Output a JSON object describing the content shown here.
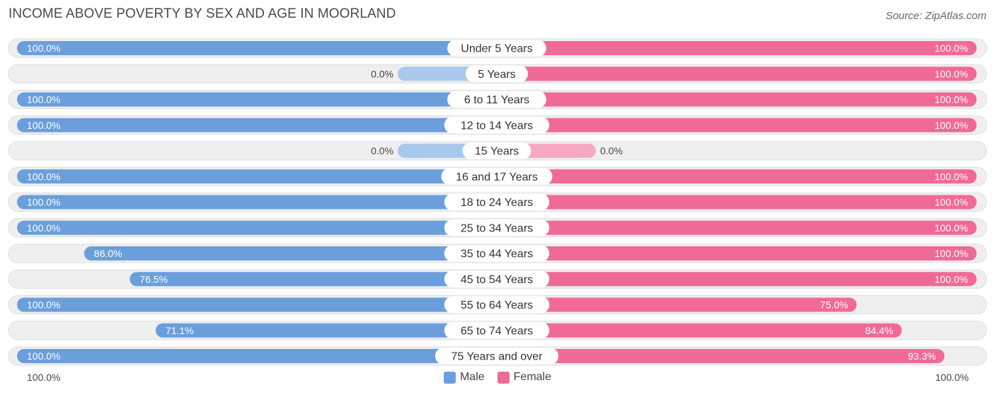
{
  "header": {
    "title": "INCOME ABOVE POVERTY BY SEX AND AGE IN MOORLAND",
    "source": "Source: ZipAtlas.com"
  },
  "colors": {
    "male": "#6a9fdc",
    "male_light": "#a9c9ec",
    "female": "#f06a97",
    "female_light": "#f7a9c4",
    "track": "#efefef"
  },
  "legend": {
    "male_label": "Male",
    "female_label": "Female"
  },
  "axis": {
    "left_label": "100.0%",
    "right_label": "100.0%"
  },
  "chart_data": {
    "type": "bar",
    "orientation": "horizontal-diverging",
    "title": "INCOME ABOVE POVERTY BY SEX AND AGE IN MOORLAND",
    "xlim": [
      -100,
      100
    ],
    "categories": [
      "Under 5 Years",
      "5 Years",
      "6 to 11 Years",
      "12 to 14 Years",
      "15 Years",
      "16 and 17 Years",
      "18 to 24 Years",
      "25 to 34 Years",
      "35 to 44 Years",
      "45 to 54 Years",
      "55 to 64 Years",
      "65 to 74 Years",
      "75 Years and over"
    ],
    "series": [
      {
        "name": "Male",
        "values": [
          100.0,
          0.0,
          100.0,
          100.0,
          0.0,
          100.0,
          100.0,
          100.0,
          86.0,
          76.5,
          100.0,
          71.1,
          100.0
        ],
        "labels": [
          "100.0%",
          "0.0%",
          "100.0%",
          "100.0%",
          "0.0%",
          "100.0%",
          "100.0%",
          "100.0%",
          "86.0%",
          "76.5%",
          "100.0%",
          "71.1%",
          "100.0%"
        ]
      },
      {
        "name": "Female",
        "values": [
          100.0,
          100.0,
          100.0,
          100.0,
          0.0,
          100.0,
          100.0,
          100.0,
          100.0,
          100.0,
          75.0,
          84.4,
          93.3
        ],
        "labels": [
          "100.0%",
          "100.0%",
          "100.0%",
          "100.0%",
          "0.0%",
          "100.0%",
          "100.0%",
          "100.0%",
          "100.0%",
          "100.0%",
          "75.0%",
          "84.4%",
          "93.3%"
        ]
      }
    ]
  }
}
